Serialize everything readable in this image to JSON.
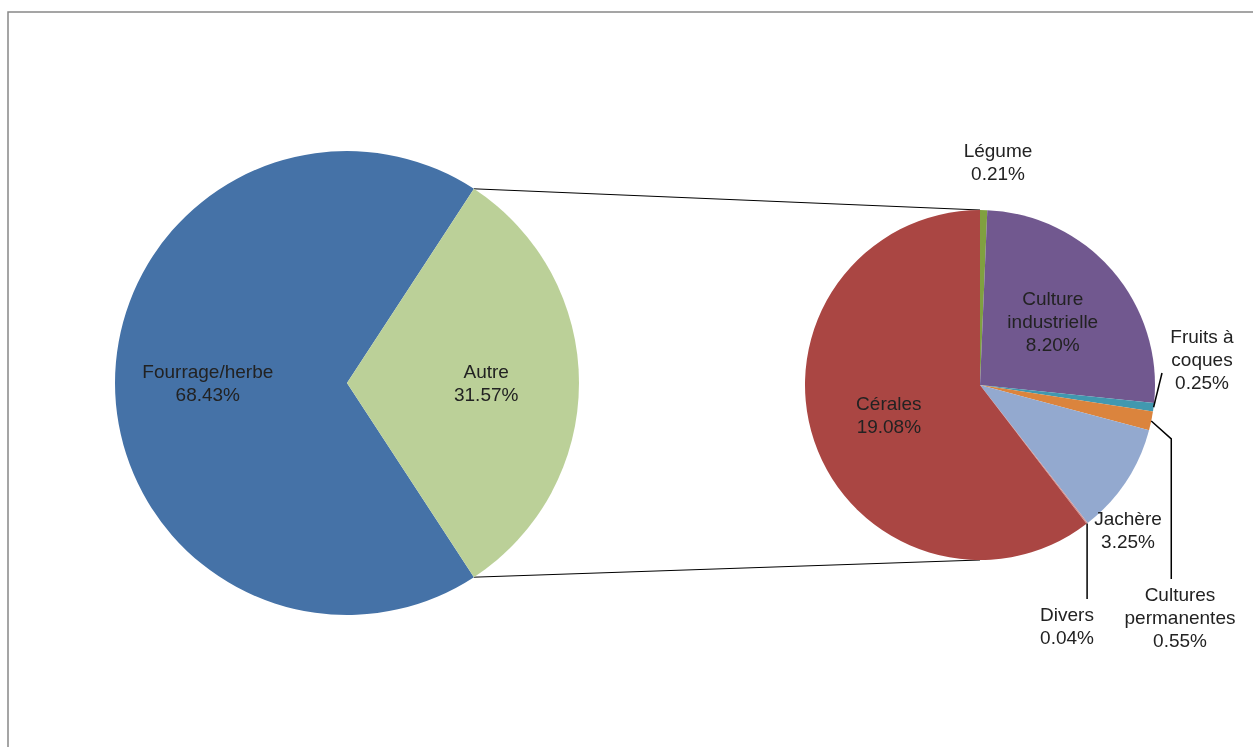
{
  "chart_data": [
    {
      "type": "pie",
      "categories": [
        "Fourrage/herbe",
        "Autre"
      ],
      "values": [
        68.43,
        31.57
      ],
      "colors": [
        "#4572a7",
        "#bbd098"
      ],
      "value_labels": [
        "68.43%",
        "31.57%"
      ]
    },
    {
      "type": "pie",
      "categories": [
        "Légume",
        "Culture industrielle",
        "Fruits à coques",
        "Cultures permanentes",
        "Jachère",
        "Divers",
        "Cérales"
      ],
      "values": [
        0.21,
        8.2,
        0.25,
        0.55,
        3.25,
        0.04,
        19.08
      ],
      "colors": [
        "#80a040",
        "#71588f",
        "#4198af",
        "#db843d",
        "#93a9cf",
        "#d09090",
        "#aa4643"
      ],
      "value_labels": [
        "0.21%",
        "8.20%",
        "0.25%",
        "0.55%",
        "3.25%",
        "0.04%",
        "19.08%"
      ]
    }
  ]
}
